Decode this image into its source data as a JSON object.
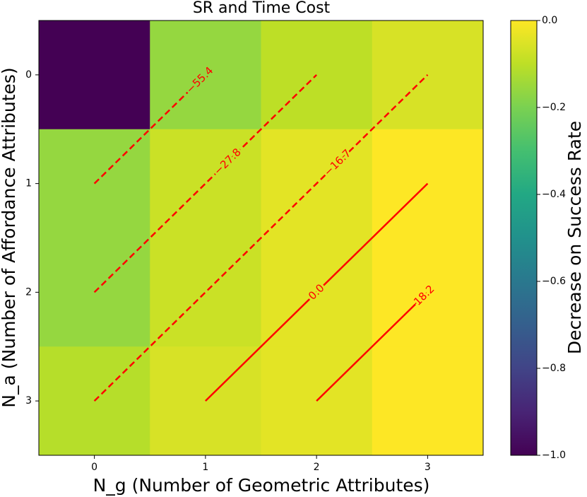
{
  "chart_data": {
    "type": "heatmap",
    "title": "SR and Time Cost",
    "x_label": "N_g (Number of Geometric Attributes)",
    "y_label": "N_a (Number of Affordance Attributes)",
    "xlim": [
      -0.5,
      3.5
    ],
    "xticks": [
      0,
      1,
      2,
      3
    ],
    "ylim": [
      3.5,
      -0.5
    ],
    "yticks": [
      0,
      1,
      2,
      3
    ],
    "values": [
      [
        -1.0,
        -0.16,
        -0.1,
        -0.06
      ],
      [
        -0.16,
        -0.08,
        -0.04,
        0.0
      ],
      [
        -0.16,
        -0.08,
        -0.04,
        0.0
      ],
      [
        -0.11,
        -0.06,
        -0.04,
        0.0
      ]
    ],
    "colormap": "viridis",
    "colorbar": {
      "label": "Decrease on Success Rate",
      "lim": [
        -1.0,
        0.0
      ],
      "ticks": [
        {
          "value": 0.0,
          "label": "0.0"
        },
        {
          "value": -0.2,
          "label": "−0.2"
        },
        {
          "value": -0.4,
          "label": "−0.4"
        },
        {
          "value": -0.6,
          "label": "−0.6"
        },
        {
          "value": -0.8,
          "label": "−0.8"
        },
        {
          "value": -1.0,
          "label": "−1.0"
        }
      ]
    },
    "contour_color": "#ff0000",
    "contours": [
      {
        "level": -55.4,
        "label": "−55.4",
        "x": [
          0,
          1
        ],
        "y": [
          1,
          0
        ]
      },
      {
        "level": -27.8,
        "label": "−27.8",
        "x": [
          0,
          2
        ],
        "y": [
          2,
          0
        ]
      },
      {
        "level": -16.7,
        "label": "−16.7",
        "x": [
          0,
          3
        ],
        "y": [
          3,
          0
        ]
      },
      {
        "level": 0.0,
        "label": "0.0",
        "x": [
          1,
          3
        ],
        "y": [
          3,
          1
        ]
      },
      {
        "level": 18.2,
        "label": "18.2",
        "x": [
          2,
          3
        ],
        "y": [
          3,
          2
        ]
      }
    ]
  }
}
